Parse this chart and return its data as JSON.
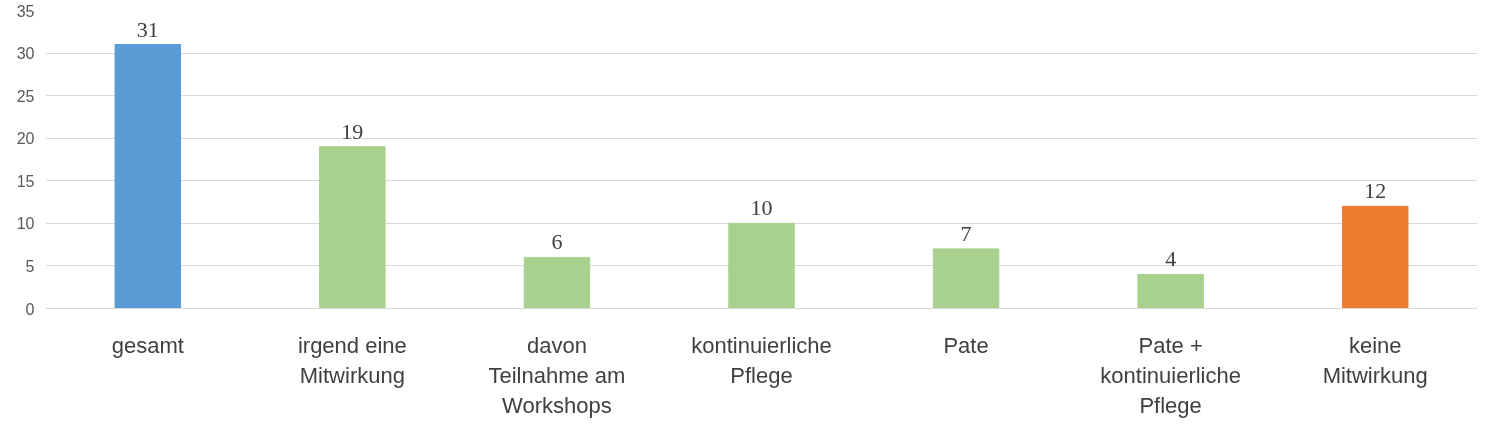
{
  "chart_data": {
    "type": "bar",
    "categories": [
      "gesamt",
      "irgend eine\nMitwirkung",
      "davon\nTeilnahme am\nWorkshops",
      "kontinuierliche\nPflege",
      "Pate",
      "Pate +\nkontinuierliche\nPflege",
      "keine\nMitwirkung"
    ],
    "values": [
      31,
      19,
      6,
      10,
      7,
      4,
      12
    ],
    "colors": [
      "#5b9bd5",
      "#a9d18e",
      "#a9d18e",
      "#a9d18e",
      "#a9d18e",
      "#a9d18e",
      "#ed7d31"
    ],
    "ylim": [
      0,
      35
    ],
    "yticks": [
      0,
      5,
      10,
      15,
      20,
      25,
      30,
      35
    ],
    "grid": "y",
    "data_labels": true
  }
}
